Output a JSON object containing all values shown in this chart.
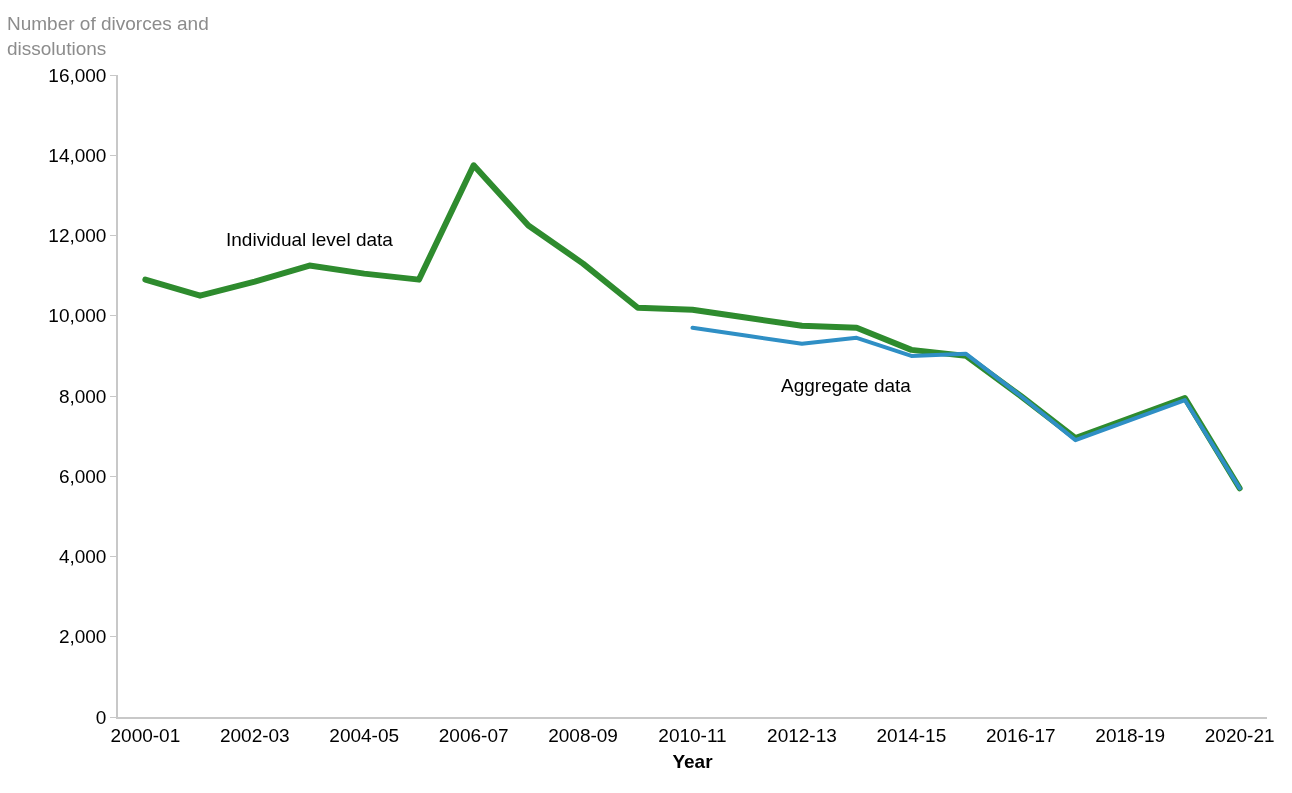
{
  "chart_data": {
    "type": "line",
    "ylabel": "Number of divorces and dissolutions",
    "xlabel": "Year",
    "categories": [
      "2000-01",
      null,
      "2002-03",
      null,
      "2004-05",
      null,
      "2006-07",
      null,
      "2008-09",
      null,
      "2010-11",
      null,
      "2012-13",
      null,
      "2014-15",
      null,
      "2016-17",
      null,
      "2018-19",
      null,
      "2020-21"
    ],
    "series": [
      {
        "name": "Individual level data",
        "color": "#2e8b2e",
        "values": [
          10900,
          10500,
          10850,
          11250,
          11050,
          10900,
          13750,
          12250,
          11300,
          10200,
          10150,
          9950,
          9750,
          9700,
          9150,
          9000,
          8000,
          6950,
          7450,
          7950,
          5700
        ]
      },
      {
        "name": "Aggregate data",
        "color": "#2f8fc5",
        "values": [
          null,
          null,
          null,
          null,
          null,
          null,
          null,
          null,
          null,
          null,
          9700,
          9500,
          9300,
          9450,
          9000,
          9050,
          8000,
          6900,
          7400,
          7900,
          5700
        ]
      }
    ],
    "ylim": [
      0,
      16000
    ],
    "yticks": [
      {
        "value": 0,
        "label": "0"
      },
      {
        "value": 2000,
        "label": "2,000"
      },
      {
        "value": 4000,
        "label": "4,000"
      },
      {
        "value": 6000,
        "label": "6,000"
      },
      {
        "value": 8000,
        "label": "8,000"
      },
      {
        "value": 10000,
        "label": "10,000"
      },
      {
        "value": 12000,
        "label": "12,000"
      },
      {
        "value": 14000,
        "label": "14,000"
      },
      {
        "value": 16000,
        "label": "16,000"
      }
    ],
    "legend": false,
    "marker": "none",
    "line_style": "solid"
  }
}
